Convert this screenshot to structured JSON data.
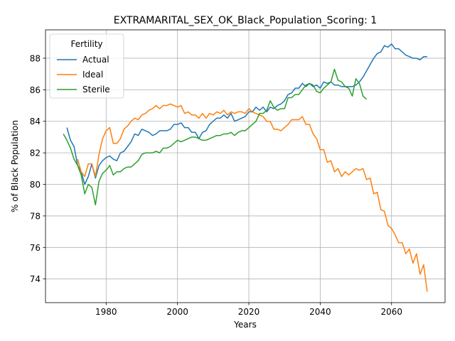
{
  "chart_data": {
    "type": "line",
    "title": "EXTRAMARITAL_SEX_OK_Black_Population_Scoring: 1",
    "xlabel": "Years",
    "ylabel": "% of Black Population",
    "xlim": [
      1963,
      2075
    ],
    "ylim": [
      72.5,
      89.8
    ],
    "xticks": [
      1980,
      2000,
      2020,
      2040,
      2060
    ],
    "yticks": [
      74,
      76,
      78,
      80,
      82,
      84,
      86,
      88
    ],
    "grid": true,
    "legend": {
      "title": "Fertility",
      "position": "top-left"
    },
    "series": [
      {
        "name": "Actual",
        "color": "#1f77b4",
        "x": [
          1969,
          1970,
          1971,
          1972,
          1973,
          1974,
          1975,
          1976,
          1977,
          1978,
          1979,
          1980,
          1981,
          1982,
          1983,
          1984,
          1985,
          1986,
          1987,
          1988,
          1989,
          1990,
          1991,
          1992,
          1993,
          1994,
          1995,
          1996,
          1997,
          1998,
          1999,
          2000,
          2001,
          2002,
          2003,
          2004,
          2005,
          2006,
          2007,
          2008,
          2009,
          2010,
          2011,
          2012,
          2013,
          2014,
          2015,
          2016,
          2017,
          2018,
          2019,
          2020,
          2021,
          2022,
          2023,
          2024,
          2025,
          2026,
          2027,
          2028,
          2029,
          2030,
          2031,
          2032,
          2033,
          2034,
          2035,
          2036,
          2037,
          2038,
          2039,
          2040,
          2041,
          2042,
          2043,
          2044,
          2045,
          2046,
          2047,
          2048,
          2049,
          2050,
          2051,
          2052,
          2053,
          2054,
          2055,
          2056,
          2057,
          2058,
          2059,
          2060,
          2061,
          2062,
          2063,
          2064,
          2065,
          2066,
          2067,
          2068,
          2069,
          2070
        ],
        "values": [
          83.6,
          82.8,
          82.4,
          81.2,
          80.8,
          80.0,
          80.5,
          81.3,
          80.4,
          81.2,
          81.5,
          81.7,
          81.8,
          81.6,
          81.5,
          82.0,
          82.1,
          82.4,
          82.7,
          83.2,
          83.1,
          83.5,
          83.4,
          83.3,
          83.1,
          83.2,
          83.4,
          83.4,
          83.4,
          83.5,
          83.8,
          83.8,
          83.9,
          83.6,
          83.6,
          83.3,
          83.3,
          82.9,
          83.3,
          83.4,
          83.8,
          84.0,
          84.2,
          84.2,
          84.4,
          84.2,
          84.5,
          84.0,
          84.1,
          84.2,
          84.3,
          84.6,
          84.6,
          84.9,
          84.7,
          84.9,
          84.6,
          84.9,
          84.8,
          85.0,
          85.1,
          85.3,
          85.7,
          85.8,
          86.1,
          86.1,
          86.4,
          86.2,
          86.4,
          86.2,
          86.3,
          86.1,
          86.5,
          86.4,
          86.5,
          86.3,
          86.3,
          86.2,
          86.2,
          86.2,
          86.2,
          86.3,
          86.5,
          86.8,
          87.2,
          87.6,
          88.0,
          88.3,
          88.4,
          88.8,
          88.7,
          88.9,
          88.6,
          88.6,
          88.4,
          88.2,
          88.1,
          88.0,
          88.0,
          87.9,
          88.1,
          88.1
        ]
      },
      {
        "name": "Ideal",
        "color": "#ff7f0e",
        "x": [
          1972,
          1973,
          1974,
          1975,
          1976,
          1977,
          1978,
          1979,
          1980,
          1981,
          1982,
          1983,
          1984,
          1985,
          1986,
          1987,
          1988,
          1989,
          1990,
          1991,
          1992,
          1993,
          1994,
          1995,
          1996,
          1997,
          1998,
          1999,
          2000,
          2001,
          2002,
          2003,
          2004,
          2005,
          2006,
          2007,
          2008,
          2009,
          2010,
          2011,
          2012,
          2013,
          2014,
          2015,
          2016,
          2017,
          2018,
          2019,
          2020,
          2021,
          2022,
          2023,
          2024,
          2025,
          2026,
          2027,
          2028,
          2029,
          2030,
          2031,
          2032,
          2033,
          2034,
          2035,
          2036,
          2037,
          2038,
          2039,
          2040,
          2041,
          2042,
          2043,
          2044,
          2045,
          2046,
          2047,
          2048,
          2049,
          2050,
          2051,
          2052,
          2053,
          2054,
          2055,
          2056,
          2057,
          2058,
          2059,
          2060,
          2061,
          2062,
          2063,
          2064,
          2065,
          2066,
          2067,
          2068,
          2069,
          2070
        ],
        "values": [
          81.6,
          80.8,
          80.5,
          81.3,
          81.3,
          80.5,
          81.9,
          82.9,
          83.4,
          83.6,
          82.6,
          82.6,
          82.9,
          83.5,
          83.7,
          84.0,
          84.2,
          84.1,
          84.4,
          84.5,
          84.7,
          84.8,
          85.0,
          84.8,
          85.0,
          85.0,
          85.1,
          85.0,
          84.9,
          85.0,
          84.5,
          84.6,
          84.4,
          84.4,
          84.2,
          84.5,
          84.2,
          84.5,
          84.4,
          84.6,
          84.5,
          84.7,
          84.4,
          84.6,
          84.5,
          84.6,
          84.6,
          84.5,
          84.8,
          84.6,
          84.5,
          84.4,
          84.3,
          84.0,
          84.0,
          83.5,
          83.5,
          83.4,
          83.6,
          83.8,
          84.1,
          84.1,
          84.1,
          84.3,
          83.8,
          83.8,
          83.2,
          82.9,
          82.2,
          82.2,
          81.4,
          81.5,
          80.8,
          81.0,
          80.5,
          80.8,
          80.6,
          80.8,
          81.0,
          80.9,
          81.0,
          80.3,
          80.4,
          79.4,
          79.5,
          78.4,
          78.3,
          77.4,
          77.2,
          76.8,
          76.3,
          76.3,
          75.6,
          75.9,
          75.0,
          75.6,
          74.3,
          74.9,
          73.2
        ]
      },
      {
        "name": "Sterile",
        "color": "#2ca02c",
        "x": [
          1968,
          1969,
          1970,
          1971,
          1972,
          1973,
          1974,
          1975,
          1976,
          1977,
          1978,
          1979,
          1980,
          1981,
          1982,
          1983,
          1984,
          1985,
          1986,
          1987,
          1988,
          1989,
          1990,
          1991,
          1992,
          1993,
          1994,
          1995,
          1996,
          1997,
          1998,
          1999,
          2000,
          2001,
          2002,
          2003,
          2004,
          2005,
          2006,
          2007,
          2008,
          2009,
          2010,
          2011,
          2012,
          2013,
          2014,
          2015,
          2016,
          2017,
          2018,
          2019,
          2020,
          2021,
          2022,
          2023,
          2024,
          2025,
          2026,
          2027,
          2028,
          2029,
          2030,
          2031,
          2032,
          2033,
          2034,
          2035,
          2036,
          2037,
          2038,
          2039,
          2040,
          2041,
          2042,
          2043,
          2044,
          2045,
          2046,
          2047,
          2048,
          2049,
          2050,
          2051,
          2052,
          2053
        ],
        "values": [
          83.2,
          82.8,
          82.3,
          81.6,
          81.2,
          80.6,
          79.4,
          80.0,
          79.8,
          78.7,
          80.2,
          80.7,
          80.9,
          81.2,
          80.6,
          80.8,
          80.8,
          81.0,
          81.1,
          81.1,
          81.3,
          81.5,
          81.9,
          82.0,
          82.0,
          82.0,
          82.1,
          82.0,
          82.3,
          82.3,
          82.4,
          82.6,
          82.8,
          82.7,
          82.8,
          82.9,
          83.0,
          83.0,
          82.9,
          82.8,
          82.8,
          82.9,
          83.0,
          83.1,
          83.1,
          83.2,
          83.2,
          83.3,
          83.1,
          83.3,
          83.4,
          83.4,
          83.6,
          83.8,
          84.0,
          84.5,
          84.5,
          84.7,
          85.3,
          84.9,
          84.7,
          84.8,
          84.8,
          85.5,
          85.5,
          85.7,
          85.7,
          86.0,
          86.3,
          86.4,
          86.3,
          85.9,
          85.8,
          86.1,
          86.3,
          86.5,
          87.3,
          86.6,
          86.5,
          86.2,
          86.1,
          85.6,
          86.7,
          86.4,
          85.6,
          85.4
        ]
      }
    ]
  }
}
